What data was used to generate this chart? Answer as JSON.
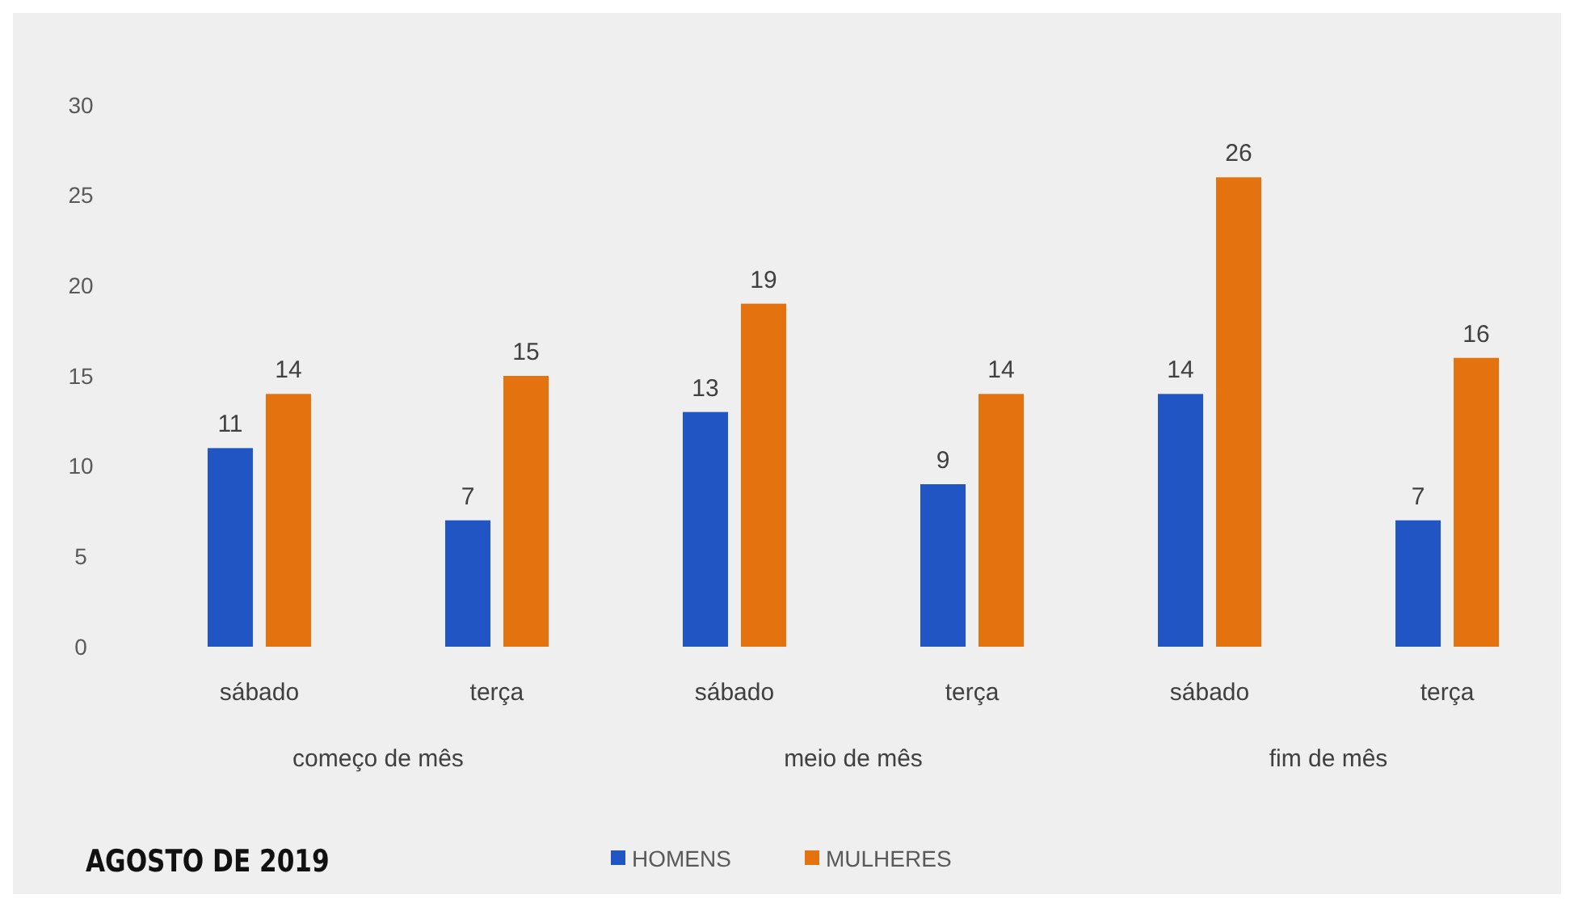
{
  "chart_data": {
    "type": "bar",
    "title": "AGOSTO DE 2019",
    "categories": [
      "sábado",
      "terça",
      "sábado",
      "terça",
      "sábado",
      "terça"
    ],
    "series": [
      {
        "name": "HOMENS",
        "color": "#2155c4",
        "values": [
          11,
          7,
          13,
          9,
          14,
          7
        ]
      },
      {
        "name": "MULHERES",
        "color": "#e3720f",
        "values": [
          14,
          15,
          19,
          14,
          26,
          16
        ]
      }
    ],
    "annotations": [
      "começo de mês",
      "meio de mês",
      "fim de mês"
    ],
    "ylim": [
      0,
      30
    ],
    "yticks": [
      0,
      5,
      10,
      15,
      20,
      25,
      30
    ],
    "data_labels": true,
    "grid": false,
    "legend": "bottom"
  }
}
